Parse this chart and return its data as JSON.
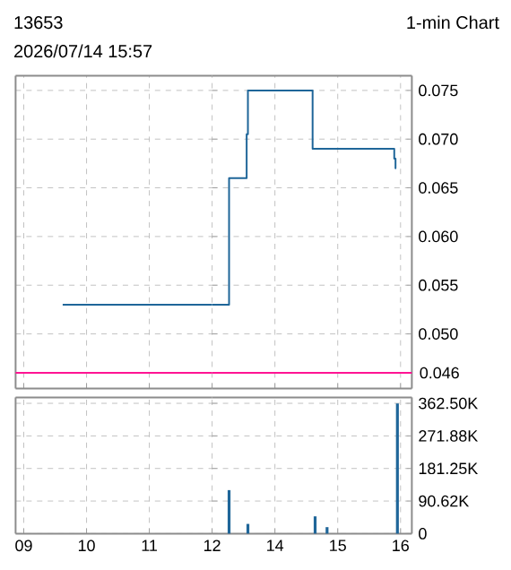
{
  "chart_data": [
    {
      "type": "step",
      "title": "13653",
      "subtitle": "2026/07/14 15:57",
      "annotations": [
        "1-min Chart"
      ],
      "x": [
        9.62,
        12
      ],
      "values": [
        0.053,
        0.053
      ],
      "color": "#1f6699",
      "marker": "none",
      "line_style": "solid",
      "xlim": [
        8.87,
        12
      ],
      "xticks": [
        9,
        10,
        11,
        12
      ],
      "ylim": [
        0.0444,
        0.0765
      ],
      "yticks": [
        0.05,
        0.055,
        0.06,
        0.065,
        0.07,
        0.075
      ],
      "ref_lines": [
        {
          "axis": "y",
          "value": 0.046,
          "color": "#ff1493"
        }
      ],
      "grid": true,
      "tick_labels": false
    },
    {
      "type": "step",
      "x": [
        13,
        13.27,
        13.55,
        13.57,
        14.6,
        15.9,
        15.92,
        15.93
      ],
      "values": [
        0.053,
        0.066,
        0.0705,
        0.075,
        0.069,
        0.068,
        0.067,
        0.067
      ],
      "color": "#1f6699",
      "marker": "none",
      "line_style": "solid",
      "xlim": [
        13,
        16.18
      ],
      "xticks": [
        14,
        15,
        16
      ],
      "ylim": [
        0.0444,
        0.0765
      ],
      "yticks": [
        {
          "value": 0.05,
          "label": "0.050"
        },
        {
          "value": 0.055,
          "label": "0.055"
        },
        {
          "value": 0.06,
          "label": "0.060"
        },
        {
          "value": 0.065,
          "label": "0.065"
        },
        {
          "value": 0.07,
          "label": "0.070"
        },
        {
          "value": 0.075,
          "label": "0.075"
        }
      ],
      "ref_lines": [
        {
          "axis": "y",
          "value": 0.046,
          "label": "0.046",
          "color": "#ff1493"
        }
      ],
      "grid": true,
      "tick_labels": "y"
    },
    {
      "type": "bar",
      "xlim": [
        8.87,
        12
      ],
      "xticks": [
        {
          "value": 9,
          "label": "09"
        },
        10,
        11,
        12
      ],
      "ylim": [
        0,
        379000
      ],
      "yticks": [
        0,
        90625,
        181250,
        271875,
        362500
      ],
      "grid": true,
      "tick_labels": "x"
    },
    {
      "type": "bar",
      "x": [
        13.27,
        13.57,
        14.64,
        14.83,
        15.95
      ],
      "values": [
        121000,
        27000,
        48000,
        18000,
        362000
      ],
      "color": "#1f6699",
      "xlim": [
        13,
        16.18
      ],
      "xticks": [
        14,
        15,
        16
      ],
      "ylim": [
        0,
        379000
      ],
      "yticks": [
        0,
        {
          "value": 90625,
          "label": "90.62K"
        },
        {
          "value": 181250,
          "label": "181.25K"
        },
        {
          "value": 271875,
          "label": "271.88K"
        },
        {
          "value": 362500,
          "label": "362.50K"
        }
      ],
      "grid": true
    }
  ]
}
